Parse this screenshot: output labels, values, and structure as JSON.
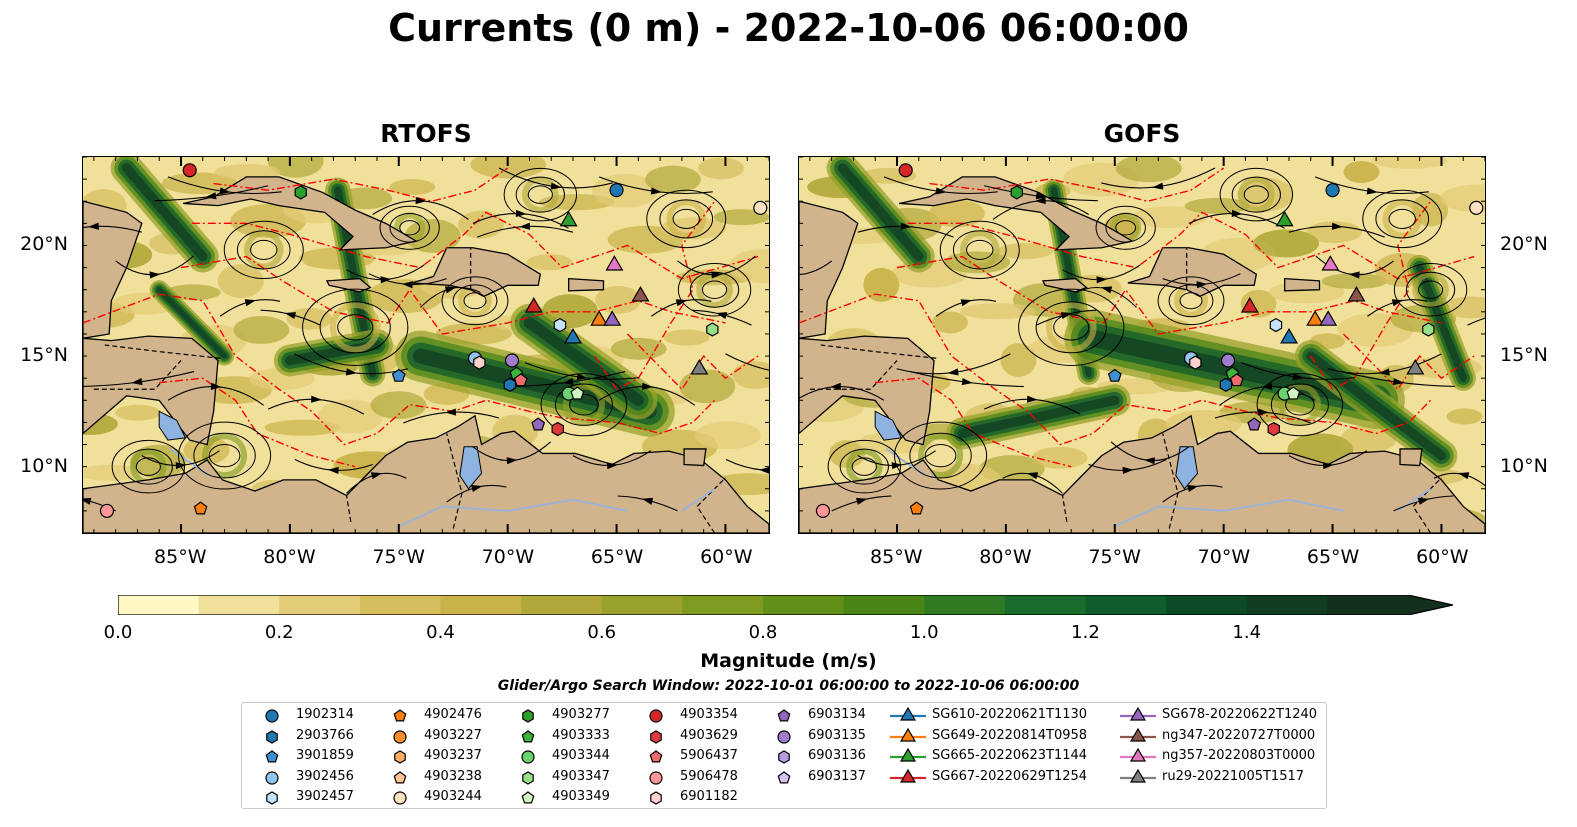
{
  "title": "Currents (0 m) - 2022-10-06 06:00:00",
  "panels": [
    {
      "title": "RTOFS"
    },
    {
      "title": "GOFS"
    }
  ],
  "axes": {
    "lon_ticks": [
      "85°W",
      "80°W",
      "75°W",
      "70°W",
      "65°W",
      "60°W"
    ],
    "lat_ticks": [
      "20°N",
      "15°N",
      "10°N"
    ]
  },
  "colorbar": {
    "label": "Magnitude (m/s)",
    "ticks": [
      "0.0",
      "0.2",
      "0.4",
      "0.6",
      "0.8",
      "1.0",
      "1.2",
      "1.4"
    ],
    "colors": [
      "#fff8c4",
      "#f0e09a",
      "#e2cc78",
      "#d5bd5c",
      "#c9b248",
      "#b0a83a",
      "#98a22c",
      "#7e9a20",
      "#629018",
      "#4a8518",
      "#2f7a22",
      "#1a6c2c",
      "#0f5c2c",
      "#0d4b27",
      "#103c22",
      "#13301c"
    ]
  },
  "search_window": "Glider/Argo Search Window: 2022-10-01 06:00:00 to 2022-10-06 06:00:00",
  "colors": {
    "land": "#d2b48c",
    "lake": "#8fb3e0",
    "eez": "#ff0000",
    "stream": "#000000"
  },
  "legend": [
    {
      "label": "1902314",
      "marker": "circle",
      "color": "#1f77b4"
    },
    {
      "label": "2903766",
      "marker": "hexagon",
      "color": "#1f77b4"
    },
    {
      "label": "3901859",
      "marker": "pentagon",
      "color": "#3f8fd2"
    },
    {
      "label": "3902456",
      "marker": "circle",
      "color": "#92c5ee"
    },
    {
      "label": "3902457",
      "marker": "hexagon",
      "color": "#c6e2f8"
    },
    {
      "label": "4902476",
      "marker": "pentagon",
      "color": "#ff7f0e"
    },
    {
      "label": "4903227",
      "marker": "circle",
      "color": "#ff8c2a"
    },
    {
      "label": "4903237",
      "marker": "hexagon",
      "color": "#ffae62"
    },
    {
      "label": "4903238",
      "marker": "pentagon",
      "color": "#ffc590"
    },
    {
      "label": "4903244",
      "marker": "circle",
      "color": "#ffe2c2"
    },
    {
      "label": "4903277",
      "marker": "hexagon",
      "color": "#2ca02c"
    },
    {
      "label": "4903333",
      "marker": "pentagon",
      "color": "#3cb43c"
    },
    {
      "label": "4903344",
      "marker": "circle",
      "color": "#6cd06c"
    },
    {
      "label": "4903347",
      "marker": "hexagon",
      "color": "#98df8a"
    },
    {
      "label": "4903349",
      "marker": "pentagon",
      "color": "#d0f5c0"
    },
    {
      "label": "4903354",
      "marker": "circle",
      "color": "#d62728"
    },
    {
      "label": "4903629",
      "marker": "hexagon",
      "color": "#e03a3c"
    },
    {
      "label": "5906437",
      "marker": "pentagon",
      "color": "#ef6b6b"
    },
    {
      "label": "5906478",
      "marker": "circle",
      "color": "#ff9896"
    },
    {
      "label": "6901182",
      "marker": "hexagon",
      "color": "#ffd0cc"
    },
    {
      "label": "6903134",
      "marker": "pentagon",
      "color": "#9467bd"
    },
    {
      "label": "6903135",
      "marker": "circle",
      "color": "#a27ccc"
    },
    {
      "label": "6903136",
      "marker": "hexagon",
      "color": "#b99ade"
    },
    {
      "label": "6903137",
      "marker": "pentagon",
      "color": "#d8c2f0"
    },
    {
      "label": "SG610-20220621T1130",
      "marker": "triangle",
      "color": "#1f77b4"
    },
    {
      "label": "SG649-20220814T0958",
      "marker": "triangle",
      "color": "#ff7f0e"
    },
    {
      "label": "SG665-20220623T1144",
      "marker": "triangle",
      "color": "#2ca02c"
    },
    {
      "label": "SG667-20220629T1254",
      "marker": "triangle",
      "color": "#d62728"
    },
    {
      "label": "SG678-20220622T1240",
      "marker": "triangle",
      "color": "#9467bd"
    },
    {
      "label": "ng347-20220727T0000",
      "marker": "triangle",
      "color": "#8c564b"
    },
    {
      "label": "ng357-20220803T0000",
      "marker": "triangle",
      "color": "#e377c2"
    },
    {
      "label": "ru29-20221005T1517",
      "marker": "triangle",
      "color": "#7f7f7f"
    }
  ],
  "platforms": [
    {
      "ref": 0,
      "lon": -65.0,
      "lat": 22.5
    },
    {
      "ref": 1,
      "lon": -69.9,
      "lat": 13.7
    },
    {
      "ref": 2,
      "lon": -75.0,
      "lat": 14.1
    },
    {
      "ref": 3,
      "lon": -71.5,
      "lat": 14.9
    },
    {
      "ref": 4,
      "lon": -67.6,
      "lat": 16.4
    },
    {
      "ref": 5,
      "lon": -84.1,
      "lat": 8.1
    },
    {
      "ref": 9,
      "lon": -58.4,
      "lat": 21.7
    },
    {
      "ref": 11,
      "lon": -69.6,
      "lat": 14.2
    },
    {
      "ref": 12,
      "lon": -67.2,
      "lat": 13.3
    },
    {
      "ref": 13,
      "lon": -60.6,
      "lat": 16.2
    },
    {
      "ref": 14,
      "lon": -66.8,
      "lat": 13.3
    },
    {
      "ref": 15,
      "lon": -84.6,
      "lat": 23.4
    },
    {
      "ref": 17,
      "lon": -69.4,
      "lat": 13.9
    },
    {
      "ref": 18,
      "lon": -88.4,
      "lat": 8.0
    },
    {
      "ref": 19,
      "lon": -71.3,
      "lat": 14.7
    },
    {
      "ref": 10,
      "lon": -79.5,
      "lat": 22.4
    },
    {
      "ref": 16,
      "lon": -67.7,
      "lat": 11.7
    },
    {
      "ref": 20,
      "lon": -68.6,
      "lat": 11.9
    },
    {
      "ref": 21,
      "lon": -69.8,
      "lat": 14.8
    },
    {
      "ref": 24,
      "lon": -67.0,
      "lat": 15.8
    },
    {
      "ref": 25,
      "lon": -65.8,
      "lat": 16.6
    },
    {
      "ref": 26,
      "lon": -67.2,
      "lat": 21.1
    },
    {
      "ref": 27,
      "lon": -68.8,
      "lat": 17.2
    },
    {
      "ref": 28,
      "lon": -65.2,
      "lat": 16.6
    },
    {
      "ref": 29,
      "lon": -63.9,
      "lat": 17.7
    },
    {
      "ref": 30,
      "lon": -65.1,
      "lat": 19.1
    },
    {
      "ref": 31,
      "lon": -61.2,
      "lat": 14.4
    }
  ]
}
